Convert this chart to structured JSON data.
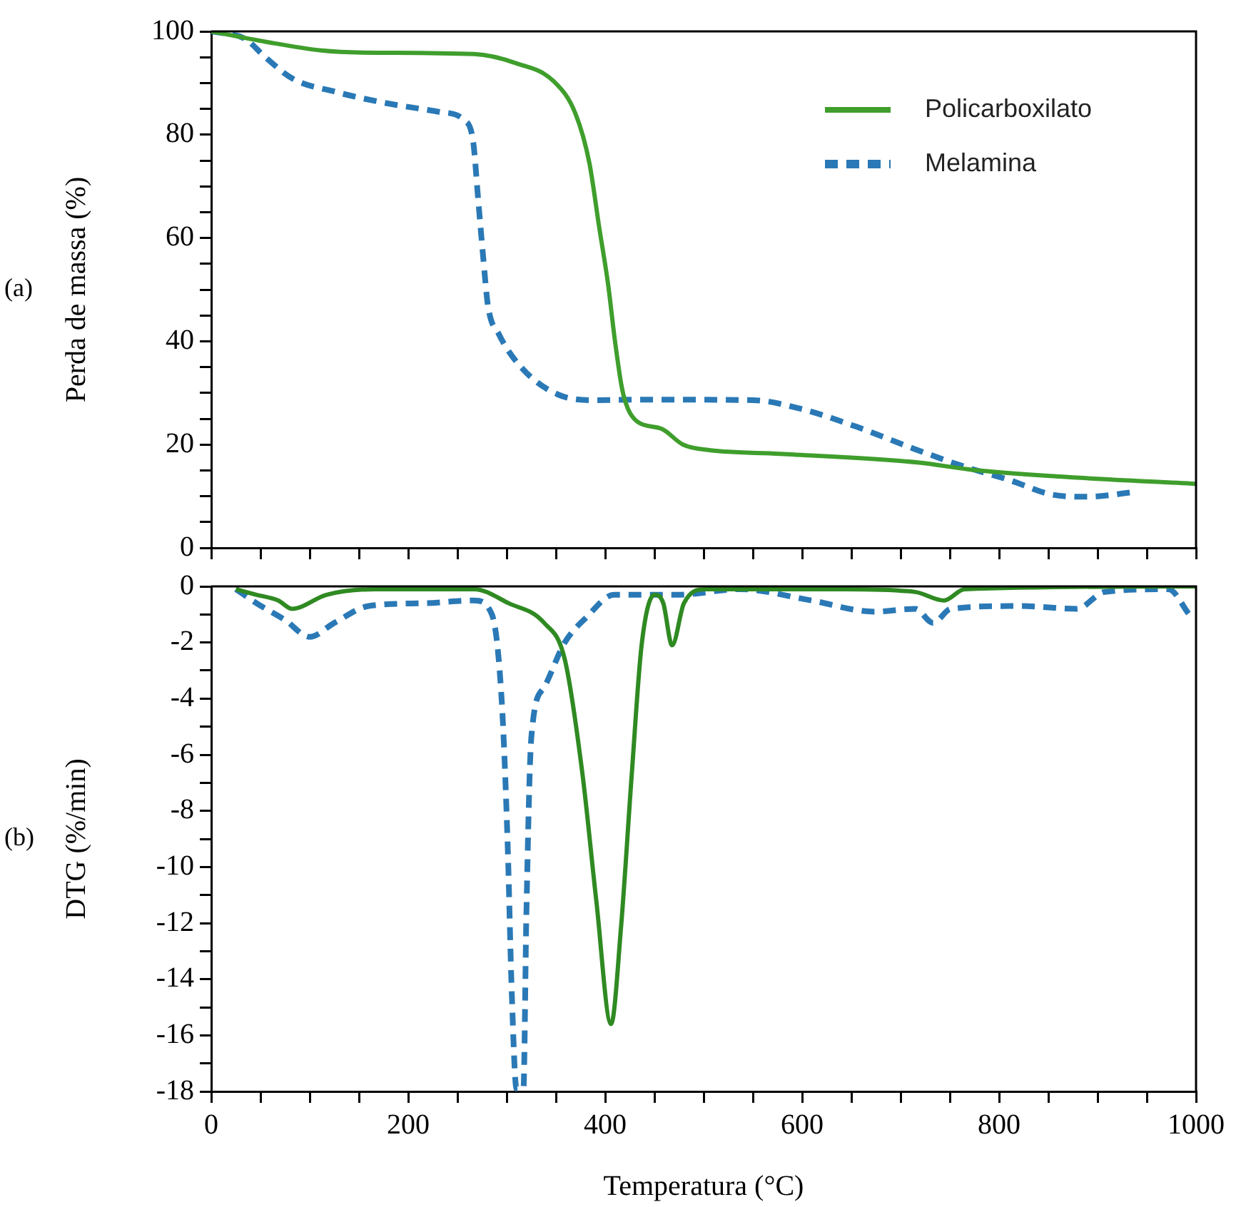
{
  "chart_data": [
    {
      "type": "line",
      "ylabel": "Perda de massa (%)",
      "annotations": [
        "(a)"
      ],
      "legend": "top right",
      "tick_labels": "y",
      "grid": false,
      "marker": "none",
      "xlim": [
        0,
        1000
      ],
      "xticks": [
        {
          "value": 0,
          "label": null
        },
        {
          "value": 50,
          "label": null
        },
        {
          "value": 100,
          "label": null
        },
        {
          "value": 150,
          "label": null
        },
        {
          "value": 200,
          "label": null
        },
        {
          "value": 250,
          "label": null
        },
        {
          "value": 300,
          "label": null
        },
        {
          "value": 350,
          "label": null
        },
        {
          "value": 400,
          "label": null
        },
        {
          "value": 450,
          "label": null
        },
        {
          "value": 500,
          "label": null
        },
        {
          "value": 550,
          "label": null
        },
        {
          "value": 600,
          "label": null
        },
        {
          "value": 650,
          "label": null
        },
        {
          "value": 700,
          "label": null
        },
        {
          "value": 750,
          "label": null
        },
        {
          "value": 800,
          "label": null
        },
        {
          "value": 850,
          "label": null
        },
        {
          "value": 900,
          "label": null
        },
        {
          "value": 950,
          "label": null
        },
        {
          "value": 1000,
          "label": null
        }
      ],
      "ylim": [
        0,
        100
      ],
      "yticks": [
        0,
        {
          "value": 5,
          "label": null
        },
        {
          "value": 10,
          "label": null
        },
        {
          "value": 15,
          "label": null
        },
        20,
        {
          "value": 25,
          "label": null
        },
        {
          "value": 30,
          "label": null
        },
        {
          "value": 35,
          "label": null
        },
        40,
        {
          "value": 45,
          "label": null
        },
        {
          "value": 50,
          "label": null
        },
        {
          "value": 55,
          "label": null
        },
        60,
        {
          "value": 65,
          "label": null
        },
        {
          "value": 70,
          "label": null
        },
        {
          "value": 75,
          "label": null
        },
        80,
        {
          "value": 85,
          "label": null
        },
        {
          "value": 90,
          "label": null
        },
        {
          "value": 95,
          "label": null
        },
        100
      ],
      "series": [
        {
          "name": "Policarboxilato",
          "color": "#3f9e2c",
          "line_style": "solid",
          "x": [
            0,
            55,
            112,
            154,
            267,
            310,
            348,
            370,
            384,
            394,
            403,
            410,
            417,
            423,
            433,
            458,
            479,
            507,
            578,
            719,
            769,
            861,
            1000
          ],
          "values": [
            100,
            98,
            96.3,
            95.9,
            95.6,
            93.8,
            90.3,
            84,
            74.5,
            62,
            51,
            40,
            31,
            27,
            24.4,
            23,
            20,
            18.9,
            18.2,
            16.5,
            15.2,
            13.8,
            12.4
          ]
        },
        {
          "name": "Melamina",
          "color": "#2a79b6",
          "line_style": "dashed",
          "x": [
            0,
            34,
            55,
            83,
            126,
            175,
            232,
            257,
            266,
            271,
            276,
            281,
            292,
            317,
            352,
            387,
            437,
            550,
            599,
            656,
            712,
            762,
            811,
            854,
            889,
            938
          ],
          "values": [
            100,
            98.6,
            95,
            90.8,
            88.3,
            86.2,
            84.4,
            82.8,
            78.6,
            67.6,
            56.6,
            46.9,
            41.4,
            34.5,
            29.7,
            28.6,
            28.7,
            28.6,
            26.9,
            23.4,
            19.3,
            15.9,
            13.1,
            10.3,
            9.9,
            10.8
          ]
        }
      ]
    },
    {
      "type": "line",
      "xlabel": "Temperatura (°C)",
      "ylabel": "DTG (%/min)",
      "annotations": [
        "(b)"
      ],
      "grid": false,
      "marker": "none",
      "xlim": [
        0,
        1000
      ],
      "xticks": [
        0,
        {
          "value": 50,
          "label": null
        },
        {
          "value": 100,
          "label": null
        },
        {
          "value": 150,
          "label": null
        },
        200,
        {
          "value": 250,
          "label": null
        },
        {
          "value": 300,
          "label": null
        },
        {
          "value": 350,
          "label": null
        },
        400,
        {
          "value": 450,
          "label": null
        },
        {
          "value": 500,
          "label": null
        },
        {
          "value": 550,
          "label": null
        },
        600,
        {
          "value": 650,
          "label": null
        },
        {
          "value": 700,
          "label": null
        },
        {
          "value": 750,
          "label": null
        },
        800,
        {
          "value": 850,
          "label": null
        },
        {
          "value": 900,
          "label": null
        },
        {
          "value": 950,
          "label": null
        },
        1000
      ],
      "ylim": [
        -18,
        0
      ],
      "yticks": [
        -18,
        {
          "value": -17,
          "label": null
        },
        -16,
        {
          "value": -15,
          "label": null
        },
        -14,
        {
          "value": -13,
          "label": null
        },
        -12,
        {
          "value": -11,
          "label": null
        },
        -10,
        {
          "value": -9,
          "label": null
        },
        -8,
        {
          "value": -7,
          "label": null
        },
        -6,
        {
          "value": -5,
          "label": null
        },
        -4,
        {
          "value": -3,
          "label": null
        },
        -2,
        {
          "value": -1,
          "label": null
        },
        0
      ],
      "series": [
        {
          "color": "#2f8a22",
          "line_style": "solid",
          "x": [
            25,
            46,
            68,
            82,
            117,
            167,
            267,
            302,
            338,
            359,
            377,
            391,
            406,
            416,
            427,
            437,
            450,
            459,
            468,
            480,
            502,
            644,
            715,
            744,
            765,
            1000
          ],
          "values": [
            -0.1,
            -0.3,
            -0.5,
            -0.8,
            -0.3,
            -0.1,
            -0.1,
            -0.6,
            -1.3,
            -2.6,
            -6.7,
            -11.2,
            -15.6,
            -12.2,
            -6.7,
            -2.1,
            -0.3,
            -0.6,
            -2.1,
            -0.6,
            -0.1,
            -0.1,
            -0.2,
            -0.5,
            -0.1,
            0
          ]
        },
        {
          "color": "#2a79b6",
          "line_style": "dashed",
          "x": [
            25,
            46,
            75,
            100,
            125,
            160,
            217,
            267,
            285,
            295,
            301,
            305,
            310,
            317,
            320,
            325,
            338,
            359,
            381,
            409,
            473,
            537,
            609,
            673,
            715,
            733,
            751,
            822,
            879,
            907,
            972,
            993
          ],
          "values": [
            -0.1,
            -0.6,
            -1.2,
            -1.8,
            -1.3,
            -0.7,
            -0.6,
            -0.5,
            -1.0,
            -4.1,
            -9.2,
            -14.3,
            -17.9,
            -17.9,
            -11.7,
            -5.4,
            -3.6,
            -2.0,
            -1.1,
            -0.3,
            -0.3,
            -0.1,
            -0.5,
            -0.9,
            -0.8,
            -1.3,
            -0.8,
            -0.7,
            -0.8,
            -0.2,
            -0.1,
            -1.0
          ]
        }
      ]
    }
  ]
}
